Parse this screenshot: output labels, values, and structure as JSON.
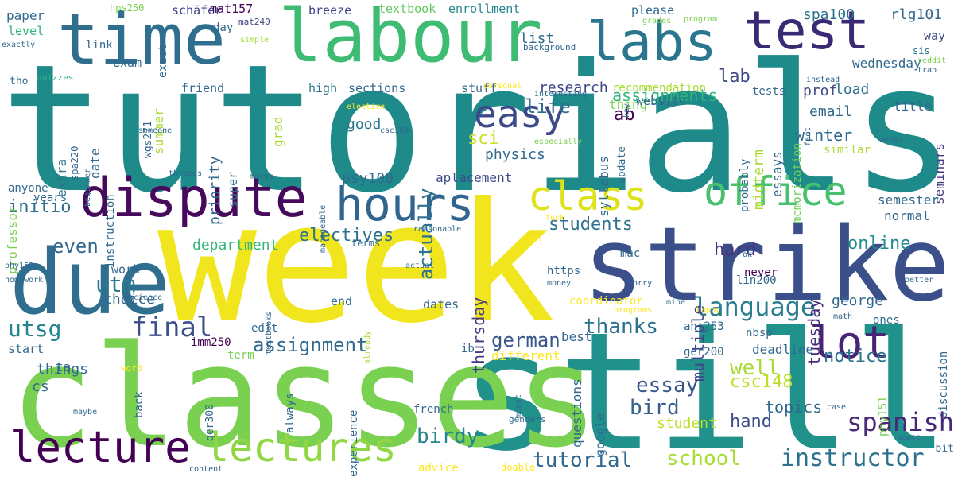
{
  "words": [
    "tutorials",
    "week",
    "still",
    "classes",
    "strike",
    "due",
    "labour",
    "time",
    "labs",
    "test",
    "dispute",
    "hours",
    "lecture",
    "lectures",
    "office",
    "class",
    "easy",
    "lot",
    "final",
    "language",
    "spanish",
    "instructor",
    "assignment",
    "tutorial",
    "birdy",
    "school",
    "utm",
    "utsg",
    "students",
    "life",
    "assignments",
    "thanks",
    "essay",
    "well",
    "german",
    "bird",
    "hard",
    "online",
    "initio",
    "electives",
    "actually",
    "aplacement",
    "sci",
    "physics",
    "lab",
    "prof",
    "ab",
    "email",
    "winter",
    "even",
    "department",
    "csc148",
    "notice",
    "topics",
    "hand",
    "student",
    "tuesday",
    "thursday",
    "multiple",
    "george",
    "load",
    "research",
    "spa100",
    "rlg101",
    "textbook",
    "enrollment",
    "paper",
    "hps250",
    "exact",
    "schäfer",
    "mat157",
    "mat240",
    "breeze",
    "please",
    "way",
    "grades",
    "program",
    "level",
    "link",
    "day",
    "list",
    "exam",
    "friend",
    "high",
    "sections",
    "stuff",
    "recommendation",
    "midterm",
    "essays",
    "memorization",
    "seminars",
    "title",
    "wednesday",
    "tests",
    "sis",
    "reddit",
    "trap",
    "instead",
    "exactly",
    "simple",
    "quizzes",
    "tho",
    "professor",
    "extra",
    "spa220",
    "date",
    "instruction",
    "summer",
    "grad",
    "good",
    "priority",
    "super",
    "wgs271",
    "syllabus",
    "update",
    "thing",
    "website",
    "probably",
    "years",
    "anyone",
    "psy100",
    "elective",
    "csc108",
    "interesting",
    "key",
    "semester",
    "normal",
    "fact",
    "similar",
    "weeks",
    "beginner",
    "someone",
    "threads",
    "marks",
    "manageable",
    "especially",
    "background",
    "personal",
    "fuck",
    "fall",
    "ok",
    "better",
    "mac",
    "https",
    "never",
    "lin200",
    "reasonable",
    "actual",
    "money",
    "sorry",
    "programs",
    "mine",
    "happy",
    "math",
    "discussion",
    "phy152",
    "homework",
    "textbooks",
    "science",
    "terms",
    "work",
    "end",
    "dates",
    "coordinator",
    "ant253",
    "ib",
    "edit",
    "ones",
    "choice",
    "start",
    "imm250",
    "already",
    "best",
    "nbsp",
    "deadline",
    "ta",
    "term",
    "different",
    "ger200",
    "cs",
    "things",
    "word",
    "ger300",
    "back",
    "always",
    "experience",
    "french",
    "questions",
    "google",
    "case",
    "phy151",
    "space",
    "bit",
    "maybe",
    "genders",
    "meant",
    "advice",
    "doable",
    "content"
  ]
}
